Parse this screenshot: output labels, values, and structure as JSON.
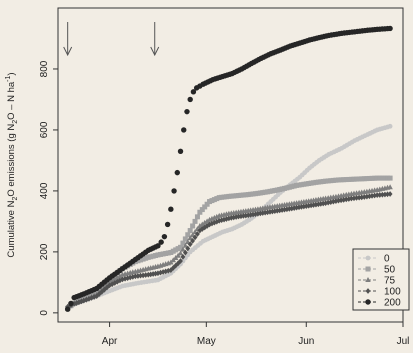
{
  "chart_data": {
    "type": "line",
    "title": "",
    "xlabel": "",
    "ylabel_parts": [
      "Cumulative N",
      "2",
      "O emissions (g N",
      "2",
      "O – N ha",
      "-1",
      ")"
    ],
    "x_ticks": [
      {
        "label": "Apr",
        "day": 91
      },
      {
        "label": "May",
        "day": 121
      },
      {
        "label": "Jun",
        "day": 152
      },
      {
        "label": "Jul",
        "day": 182
      }
    ],
    "y_ticks": [
      0,
      200,
      400,
      600,
      800
    ],
    "xlim": [
      75,
      182
    ],
    "ylim": [
      -30,
      1000
    ],
    "grid": false,
    "legend_position": "bottom-right",
    "arrows": [
      {
        "day": 78,
        "label": ""
      },
      {
        "day": 105,
        "label": ""
      }
    ],
    "series": [
      {
        "name": "0",
        "color": "#c8c8c8",
        "marker": "circle",
        "size": 2.4,
        "points": [
          [
            78,
            15
          ],
          [
            80,
            28
          ],
          [
            83,
            40
          ],
          [
            87,
            55
          ],
          [
            91,
            72
          ],
          [
            95,
            88
          ],
          [
            100,
            98
          ],
          [
            106,
            108
          ],
          [
            110,
            130
          ],
          [
            113,
            160
          ],
          [
            116,
            200
          ],
          [
            120,
            235
          ],
          [
            123,
            250
          ],
          [
            126,
            265
          ],
          [
            129,
            275
          ],
          [
            132,
            290
          ],
          [
            135,
            310
          ],
          [
            138,
            335
          ],
          [
            141,
            365
          ],
          [
            144,
            395
          ],
          [
            147,
            420
          ],
          [
            150,
            445
          ],
          [
            153,
            475
          ],
          [
            156,
            500
          ],
          [
            159,
            520
          ],
          [
            163,
            540
          ],
          [
            167,
            565
          ],
          [
            171,
            585
          ],
          [
            174,
            600
          ],
          [
            178,
            612
          ]
        ]
      },
      {
        "name": "50",
        "color": "#a3a3a3",
        "marker": "square",
        "size": 2.5,
        "points": [
          [
            78,
            15
          ],
          [
            80,
            32
          ],
          [
            83,
            45
          ],
          [
            87,
            68
          ],
          [
            91,
            110
          ],
          [
            95,
            145
          ],
          [
            99,
            168
          ],
          [
            103,
            182
          ],
          [
            106,
            190
          ],
          [
            110,
            198
          ],
          [
            113,
            215
          ],
          [
            116,
            270
          ],
          [
            119,
            330
          ],
          [
            122,
            365
          ],
          [
            125,
            378
          ],
          [
            128,
            382
          ],
          [
            131,
            385
          ],
          [
            134,
            388
          ],
          [
            137,
            392
          ],
          [
            140,
            397
          ],
          [
            143,
            403
          ],
          [
            146,
            410
          ],
          [
            149,
            418
          ],
          [
            152,
            423
          ],
          [
            155,
            428
          ],
          [
            158,
            432
          ],
          [
            162,
            436
          ],
          [
            166,
            438
          ],
          [
            170,
            440
          ],
          [
            174,
            442
          ],
          [
            178,
            442
          ]
        ]
      },
      {
        "name": "75",
        "color": "#7e7e7e",
        "marker": "triangle",
        "size": 2.5,
        "points": [
          [
            78,
            20
          ],
          [
            80,
            30
          ],
          [
            83,
            42
          ],
          [
            87,
            60
          ],
          [
            91,
            100
          ],
          [
            95,
            125
          ],
          [
            99,
            135
          ],
          [
            103,
            145
          ],
          [
            106,
            152
          ],
          [
            110,
            165
          ],
          [
            113,
            195
          ],
          [
            116,
            245
          ],
          [
            119,
            285
          ],
          [
            122,
            305
          ],
          [
            125,
            318
          ],
          [
            128,
            325
          ],
          [
            131,
            330
          ],
          [
            134,
            335
          ],
          [
            137,
            340
          ],
          [
            140,
            345
          ],
          [
            143,
            350
          ],
          [
            146,
            355
          ],
          [
            149,
            360
          ],
          [
            152,
            365
          ],
          [
            155,
            370
          ],
          [
            158,
            375
          ],
          [
            162,
            382
          ],
          [
            166,
            390
          ],
          [
            170,
            396
          ],
          [
            174,
            403
          ],
          [
            178,
            412
          ]
        ]
      },
      {
        "name": "100",
        "color": "#505050",
        "marker": "diamond",
        "size": 2.4,
        "points": [
          [
            78,
            20
          ],
          [
            80,
            30
          ],
          [
            83,
            40
          ],
          [
            87,
            55
          ],
          [
            91,
            90
          ],
          [
            95,
            110
          ],
          [
            99,
            120
          ],
          [
            103,
            125
          ],
          [
            106,
            130
          ],
          [
            110,
            140
          ],
          [
            113,
            170
          ],
          [
            116,
            225
          ],
          [
            119,
            270
          ],
          [
            122,
            290
          ],
          [
            125,
            302
          ],
          [
            128,
            310
          ],
          [
            131,
            316
          ],
          [
            134,
            320
          ],
          [
            137,
            325
          ],
          [
            140,
            330
          ],
          [
            143,
            335
          ],
          [
            146,
            340
          ],
          [
            149,
            345
          ],
          [
            152,
            350
          ],
          [
            155,
            355
          ],
          [
            158,
            360
          ],
          [
            162,
            368
          ],
          [
            166,
            375
          ],
          [
            170,
            380
          ],
          [
            174,
            386
          ],
          [
            178,
            390
          ]
        ]
      },
      {
        "name": "200",
        "color": "#262626",
        "marker": "circle",
        "size": 2.7,
        "points": [
          [
            78,
            12
          ],
          [
            80,
            50
          ],
          [
            83,
            62
          ],
          [
            87,
            80
          ],
          [
            91,
            115
          ],
          [
            95,
            145
          ],
          [
            99,
            175
          ],
          [
            103,
            205
          ],
          [
            106,
            220
          ],
          [
            107,
            232
          ],
          [
            108,
            250
          ],
          [
            109,
            290
          ],
          [
            110,
            340
          ],
          [
            111,
            400
          ],
          [
            112,
            460
          ],
          [
            113,
            530
          ],
          [
            114,
            600
          ],
          [
            115,
            660
          ],
          [
            116,
            700
          ],
          [
            117,
            725
          ],
          [
            118,
            738
          ],
          [
            120,
            750
          ],
          [
            123,
            765
          ],
          [
            126,
            775
          ],
          [
            129,
            785
          ],
          [
            132,
            800
          ],
          [
            135,
            818
          ],
          [
            138,
            835
          ],
          [
            141,
            850
          ],
          [
            144,
            862
          ],
          [
            147,
            875
          ],
          [
            150,
            885
          ],
          [
            153,
            895
          ],
          [
            156,
            903
          ],
          [
            159,
            910
          ],
          [
            163,
            917
          ],
          [
            167,
            922
          ],
          [
            171,
            927
          ],
          [
            174,
            930
          ],
          [
            178,
            933
          ]
        ]
      }
    ]
  }
}
